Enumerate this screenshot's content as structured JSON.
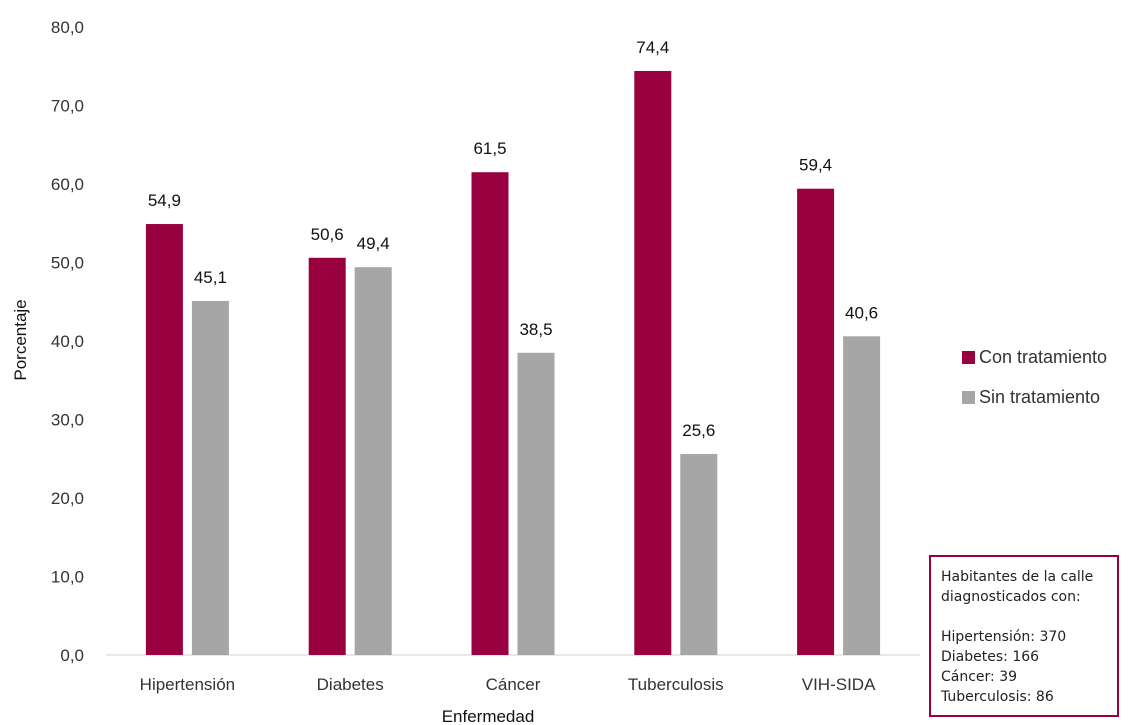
{
  "chart_data": {
    "type": "bar",
    "xlabel": "Enfermedad",
    "ylabel": "Porcentaje",
    "ylim": [
      0,
      80
    ],
    "yticks": [
      "0,0",
      "10,0",
      "20,0",
      "30,0",
      "40,0",
      "50,0",
      "60,0",
      "70,0",
      "80,0"
    ],
    "categories": [
      "Hipertensión",
      "Diabetes",
      "Cáncer",
      "Tuberculosis",
      "VIH-SIDA"
    ],
    "series": [
      {
        "name": "Con tratamiento",
        "color": "#99003f",
        "values": [
          54.9,
          50.6,
          61.5,
          74.4,
          59.4
        ],
        "labels": [
          "54,9",
          "50,6",
          "61,5",
          "74,4",
          "59,4"
        ]
      },
      {
        "name": "Sin tratamiento",
        "color": "#a6a6a6",
        "values": [
          45.1,
          49.4,
          38.5,
          25.6,
          40.6
        ],
        "labels": [
          "45,1",
          "49,4",
          "38,5",
          "25,6",
          "40,6"
        ]
      }
    ],
    "legend_position": "right",
    "grid": false
  },
  "note": {
    "heading": "Habitantes de la calle diagnosticados con:",
    "lines": [
      "Hipertensión: 370",
      "Diabetes: 166",
      "Cáncer: 39",
      "Tuberculosis: 86"
    ]
  }
}
